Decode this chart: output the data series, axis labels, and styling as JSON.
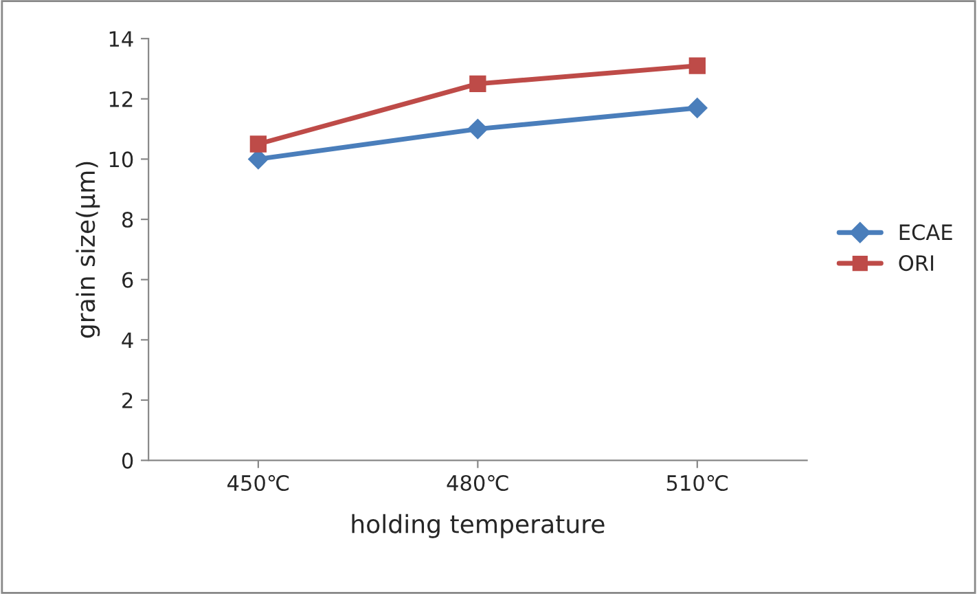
{
  "chart_data": {
    "type": "line",
    "xlabel": "holding temperature",
    "ylabel": "grain size(μm)",
    "categories": [
      "450℃",
      "480℃",
      "510℃"
    ],
    "series": [
      {
        "name": "ECAE",
        "color": "#4a7ebb",
        "marker": "diamond",
        "values": [
          10.0,
          11.0,
          11.7
        ]
      },
      {
        "name": "ORI",
        "color": "#be4b48",
        "marker": "square",
        "values": [
          10.5,
          12.5,
          13.1
        ]
      }
    ],
    "ylim": [
      0,
      14
    ],
    "yticks": [
      0,
      2,
      4,
      6,
      8,
      10,
      12,
      14
    ],
    "grid": false,
    "legend": "right",
    "line_style": "solid"
  }
}
